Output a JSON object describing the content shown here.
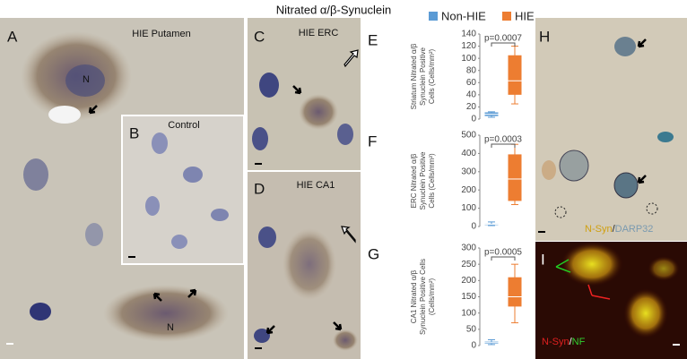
{
  "figure": {
    "title": "Nitrated α/β-Synuclein",
    "panel_a": {
      "label": "A",
      "caption": "HIE Putamen",
      "nucleus_labels": [
        "N",
        "N"
      ]
    },
    "panel_b": {
      "label": "B",
      "caption": "Control"
    },
    "panel_c": {
      "label": "C",
      "caption": "HIE ERC"
    },
    "panel_d": {
      "label": "D",
      "caption": "HIE CA1"
    },
    "panel_h": {
      "label": "H",
      "caption": [
        "N-Syn",
        "/",
        "DARP32"
      ]
    },
    "panel_i": {
      "label": "I",
      "caption": [
        "N-Syn",
        "/",
        "NF"
      ]
    }
  },
  "chart_data": [
    {
      "type": "box",
      "label": "E",
      "ylabel": [
        "Striatum Nitrated α/β",
        "Synuclein Positive",
        "Cells (Cells/mm²)"
      ],
      "ylim": [
        0,
        140
      ],
      "yticks": [
        0,
        20,
        40,
        60,
        80,
        100,
        120,
        140
      ],
      "annotation": "p=0.0007",
      "series": [
        {
          "name": "Non-HIE",
          "color": "#5b9bd5",
          "low": 3,
          "q1": 5,
          "median": 8,
          "q3": 11,
          "high": 12
        },
        {
          "name": "HIE",
          "color": "#ed7d31",
          "low": 25,
          "q1": 40,
          "median": 63,
          "q3": 105,
          "high": 120
        }
      ]
    },
    {
      "type": "box",
      "label": "F",
      "ylabel": [
        "ERC Nitrated α/β",
        "Synuclein Positive",
        "Cells (Cells/mm²)"
      ],
      "ylim": [
        0,
        500
      ],
      "yticks": [
        0,
        100,
        200,
        300,
        400,
        500
      ],
      "annotation": "p=0.0003",
      "series": [
        {
          "color": "#5b9bd5",
          "low": 5,
          "q1": 8,
          "median": 12,
          "q3": 15,
          "high": 25
        },
        {
          "color": "#ed7d31",
          "low": 120,
          "q1": 140,
          "median": 260,
          "q3": 395,
          "high": 450
        }
      ]
    },
    {
      "type": "box",
      "label": "G",
      "ylabel": [
        "CA1 Nitrated α/β",
        "Synuclein Positive Cells",
        "(Cells/mm²)"
      ],
      "ylim": [
        0,
        300
      ],
      "yticks": [
        0,
        50,
        100,
        150,
        200,
        250,
        300
      ],
      "annotation": "p=0.0005",
      "series": [
        {
          "color": "#5b9bd5",
          "low": 3,
          "q1": 6,
          "median": 9,
          "q3": 12,
          "high": 18
        },
        {
          "color": "#ed7d31",
          "low": 70,
          "q1": 120,
          "median": 150,
          "q3": 210,
          "high": 250
        }
      ]
    }
  ]
}
